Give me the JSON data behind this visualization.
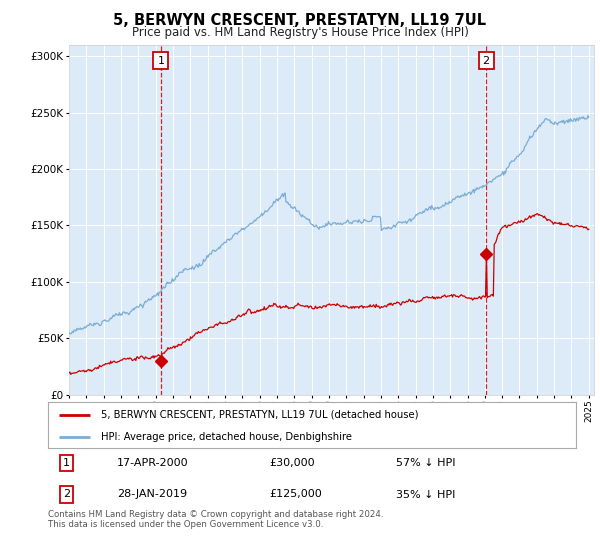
{
  "title": "5, BERWYN CRESCENT, PRESTATYN, LL19 7UL",
  "subtitle": "Price paid vs. HM Land Registry's House Price Index (HPI)",
  "legend_line1": "5, BERWYN CRESCENT, PRESTATYN, LL19 7UL (detached house)",
  "legend_line2": "HPI: Average price, detached house, Denbighshire",
  "sale1_date": "17-APR-2000",
  "sale1_price": "£30,000",
  "sale1_hpi": "57% ↓ HPI",
  "sale1_year": 2000.3,
  "sale1_value": 30000,
  "sale2_date": "28-JAN-2019",
  "sale2_price": "£125,000",
  "sale2_hpi": "35% ↓ HPI",
  "sale2_year": 2019.07,
  "sale2_value": 125000,
  "hpi_color": "#7aadd4",
  "price_color": "#cc0000",
  "marker_color": "#cc0000",
  "bg_color": "#ddeaf7",
  "grid_color": "#ffffff",
  "vline_color": "#cc0000",
  "ylim_max": 310000,
  "footer_text": "Contains HM Land Registry data © Crown copyright and database right 2024.\nThis data is licensed under the Open Government Licence v3.0.",
  "year_start": 1995,
  "year_end": 2025
}
